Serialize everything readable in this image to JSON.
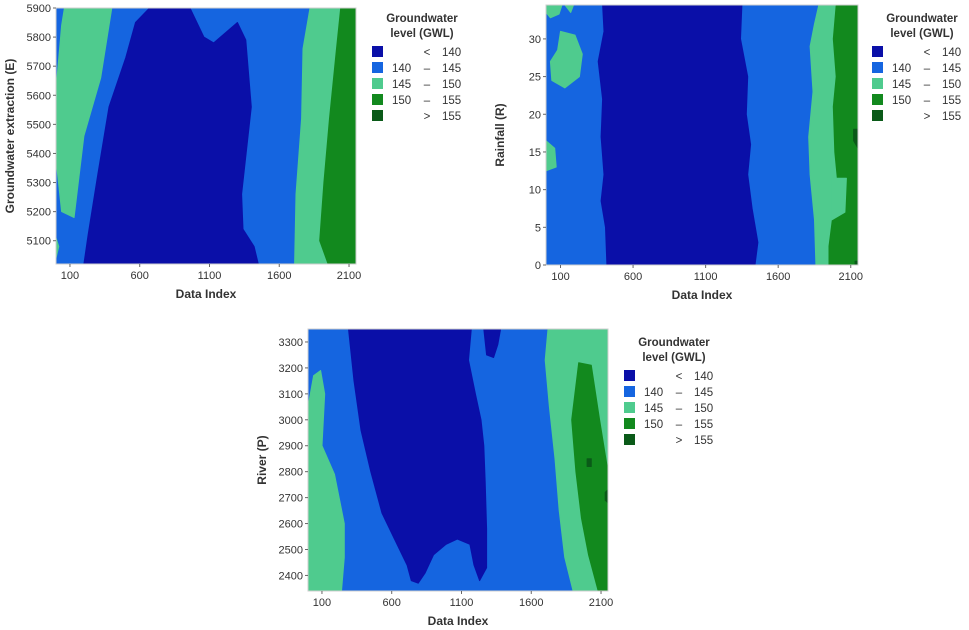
{
  "colors": {
    "lt140": "#0A0FA8",
    "b140_145": "#1565E0",
    "b145_150": "#4FCB8E",
    "b150_155": "#12891E",
    "gt155": "#0A5A18",
    "axis": "#333333"
  },
  "legend": {
    "title_line1": "Groundwater",
    "title_line2": "level (GWL)",
    "items": [
      {
        "left": "",
        "dash": "<",
        "right": "140",
        "color_key": "lt140"
      },
      {
        "left": "140",
        "dash": "–",
        "right": "145",
        "color_key": "b140_145"
      },
      {
        "left": "145",
        "dash": "–",
        "right": "150",
        "color_key": "b145_150"
      },
      {
        "left": "150",
        "dash": "–",
        "right": "155",
        "color_key": "b150_155"
      },
      {
        "left": "",
        "dash": ">",
        "right": "155",
        "color_key": "gt155"
      }
    ]
  },
  "chart_data": [
    {
      "type": "contour",
      "xlabel": "Data Index",
      "ylabel": "Groundwater extraction (E)",
      "xlim": [
        0,
        2150
      ],
      "ylim": [
        5020,
        5900
      ],
      "xticks": [
        100,
        600,
        1100,
        1600,
        2100
      ],
      "yticks": [
        5100,
        5200,
        5300,
        5400,
        5500,
        5600,
        5700,
        5800,
        5900
      ],
      "z_variable": "Groundwater level (GWL)",
      "regions": [
        {
          "level": "b145_150",
          "points": [
            [
              60,
              5900
            ],
            [
              400,
              5900
            ],
            [
              320,
              5660
            ],
            [
              200,
              5460
            ],
            [
              130,
              5180
            ],
            [
              40,
              5200
            ],
            [
              0,
              5380
            ],
            [
              0,
              5620
            ],
            [
              40,
              5840
            ]
          ]
        },
        {
          "level": "lt140",
          "points": [
            [
              670,
              5900
            ],
            [
              960,
              5900
            ],
            [
              1060,
              5800
            ],
            [
              1130,
              5780
            ],
            [
              1300,
              5850
            ],
            [
              1360,
              5790
            ],
            [
              1400,
              5560
            ],
            [
              1330,
              5260
            ],
            [
              1340,
              5140
            ],
            [
              1420,
              5080
            ],
            [
              1450,
              5020
            ],
            [
              200,
              5020
            ],
            [
              230,
              5120
            ],
            [
              300,
              5330
            ],
            [
              380,
              5560
            ],
            [
              500,
              5730
            ],
            [
              570,
              5850
            ]
          ]
        },
        {
          "level": "b145_150",
          "points": [
            [
              1820,
              5900
            ],
            [
              2000,
              5900
            ],
            [
              2150,
              5900
            ],
            [
              2150,
              5020
            ],
            [
              1710,
              5020
            ],
            [
              1720,
              5260
            ],
            [
              1760,
              5520
            ],
            [
              1770,
              5760
            ]
          ]
        },
        {
          "level": "b150_155",
          "points": [
            [
              2040,
              5900
            ],
            [
              2150,
              5900
            ],
            [
              2150,
              5020
            ],
            [
              1950,
              5020
            ],
            [
              1890,
              5100
            ],
            [
              1920,
              5300
            ],
            [
              1960,
              5520
            ],
            [
              2010,
              5760
            ]
          ]
        },
        {
          "level": "b145_150",
          "points": [
            [
              0,
              5040
            ],
            [
              20,
              5080
            ],
            [
              0,
              5110
            ]
          ]
        }
      ]
    },
    {
      "type": "contour",
      "xlabel": "Data Index",
      "ylabel": "Rainfall (R)",
      "xlim": [
        0,
        2150
      ],
      "ylim": [
        0,
        34.5
      ],
      "xticks": [
        100,
        600,
        1100,
        1600,
        2100
      ],
      "yticks": [
        0,
        5,
        10,
        15,
        20,
        25,
        30
      ],
      "z_variable": "Groundwater level (GWL)",
      "regions": [
        {
          "level": "b145_150",
          "points": [
            [
              0,
              34.5
            ],
            [
              110,
              34.5
            ],
            [
              90,
              33.3
            ],
            [
              30,
              32.8
            ],
            [
              0,
              33.5
            ]
          ]
        },
        {
          "level": "b145_150",
          "points": [
            [
              130,
              34.5
            ],
            [
              190,
              34.5
            ],
            [
              170,
              33.5
            ]
          ]
        },
        {
          "level": "b145_150",
          "points": [
            [
              100,
              31
            ],
            [
              200,
              30.5
            ],
            [
              250,
              28
            ],
            [
              230,
              25
            ],
            [
              130,
              23.5
            ],
            [
              40,
              24.5
            ],
            [
              30,
              27
            ],
            [
              80,
              28.5
            ]
          ]
        },
        {
          "level": "b145_150",
          "points": [
            [
              0,
              16.5
            ],
            [
              60,
              15.5
            ],
            [
              70,
              13
            ],
            [
              0,
              12.5
            ]
          ]
        },
        {
          "level": "lt140",
          "points": [
            [
              390,
              34.5
            ],
            [
              1350,
              34.5
            ],
            [
              1340,
              30
            ],
            [
              1390,
              25
            ],
            [
              1380,
              20
            ],
            [
              1410,
              16
            ],
            [
              1390,
              12
            ],
            [
              1420,
              7.5
            ],
            [
              1460,
              3
            ],
            [
              1440,
              0
            ],
            [
              420,
              0
            ],
            [
              410,
              5
            ],
            [
              380,
              8.5
            ],
            [
              400,
              12
            ],
            [
              380,
              17
            ],
            [
              390,
              22
            ],
            [
              360,
              27
            ],
            [
              400,
              31
            ]
          ]
        },
        {
          "level": "b145_150",
          "points": [
            [
              1880,
              34.5
            ],
            [
              2150,
              34.5
            ],
            [
              2150,
              0
            ],
            [
              1860,
              0
            ],
            [
              1850,
              6
            ],
            [
              1820,
              12
            ],
            [
              1810,
              17
            ],
            [
              1840,
              23
            ],
            [
              1820,
              29
            ],
            [
              1850,
              32
            ]
          ]
        },
        {
          "level": "b150_155",
          "points": [
            [
              2000,
              34.5
            ],
            [
              2150,
              34.5
            ],
            [
              2150,
              0
            ],
            [
              1950,
              0
            ],
            [
              1950,
              2.5
            ],
            [
              1980,
              7
            ],
            [
              2010,
              11
            ],
            [
              1990,
              15
            ],
            [
              1980,
              21
            ],
            [
              2000,
              25
            ],
            [
              1980,
              30
            ]
          ]
        },
        {
          "level": "b145_150",
          "points": [
            [
              1970,
              11.5
            ],
            [
              2070,
              11.5
            ],
            [
              2060,
              7
            ],
            [
              1970,
              6
            ]
          ]
        },
        {
          "level": "gt155",
          "points": [
            [
              2120,
              18
            ],
            [
              2150,
              18
            ],
            [
              2150,
              15.5
            ],
            [
              2120,
              16.5
            ]
          ]
        },
        {
          "level": "gt155",
          "points": [
            [
              2130,
              0.5
            ],
            [
              2150,
              0.5
            ],
            [
              2150,
              0
            ],
            [
              2130,
              0
            ]
          ]
        }
      ]
    },
    {
      "type": "contour",
      "xlabel": "Data Index",
      "ylabel": "River (P)",
      "xlim": [
        0,
        2150
      ],
      "ylim": [
        2340,
        3350
      ],
      "xticks": [
        100,
        600,
        1100,
        1600,
        2100
      ],
      "yticks": [
        2400,
        2500,
        2600,
        2700,
        2800,
        2900,
        3000,
        3100,
        3200,
        3300
      ],
      "z_variable": "Groundwater level (GWL)",
      "regions": [
        {
          "level": "b145_150",
          "points": [
            [
              40,
              3170
            ],
            [
              90,
              3190
            ],
            [
              120,
              3100
            ],
            [
              100,
              2900
            ],
            [
              190,
              2790
            ],
            [
              260,
              2600
            ],
            [
              260,
              2470
            ],
            [
              240,
              2340
            ],
            [
              210,
              2340
            ],
            [
              0,
              2340
            ],
            [
              0,
              3050
            ]
          ]
        },
        {
          "level": "lt140",
          "points": [
            [
              290,
              3350
            ],
            [
              1170,
              3350
            ],
            [
              1150,
              3230
            ],
            [
              1200,
              3100
            ],
            [
              1240,
              3000
            ],
            [
              1260,
              2900
            ],
            [
              1270,
              2760
            ],
            [
              1280,
              2580
            ],
            [
              1280,
              2430
            ],
            [
              1230,
              2380
            ],
            [
              1190,
              2440
            ],
            [
              1160,
              2520
            ],
            [
              1070,
              2540
            ],
            [
              990,
              2520
            ],
            [
              900,
              2480
            ],
            [
              840,
              2410
            ],
            [
              790,
              2370
            ],
            [
              740,
              2380
            ],
            [
              710,
              2440
            ],
            [
              620,
              2540
            ],
            [
              530,
              2640
            ],
            [
              450,
              2800
            ],
            [
              380,
              2960
            ],
            [
              330,
              3150
            ]
          ]
        },
        {
          "level": "lt140",
          "points": [
            [
              1260,
              3350
            ],
            [
              1380,
              3350
            ],
            [
              1360,
              3290
            ],
            [
              1330,
              3240
            ],
            [
              1280,
              3250
            ],
            [
              1270,
              3300
            ]
          ]
        },
        {
          "level": "b145_150",
          "points": [
            [
              1720,
              3350
            ],
            [
              2150,
              3350
            ],
            [
              2150,
              2340
            ],
            [
              1900,
              2340
            ],
            [
              1840,
              2470
            ],
            [
              1800,
              2650
            ],
            [
              1770,
              2850
            ],
            [
              1730,
              3050
            ],
            [
              1700,
              3230
            ]
          ]
        },
        {
          "level": "b150_155",
          "points": [
            [
              1940,
              3220
            ],
            [
              2030,
              3210
            ],
            [
              2090,
              3000
            ],
            [
              2150,
              2800
            ],
            [
              2150,
              2340
            ],
            [
              2080,
              2340
            ],
            [
              2010,
              2480
            ],
            [
              1960,
              2620
            ],
            [
              1920,
              2800
            ],
            [
              1890,
              3000
            ]
          ]
        },
        {
          "level": "gt155",
          "points": [
            [
              2000,
              2850
            ],
            [
              2030,
              2850
            ],
            [
              2030,
              2820
            ],
            [
              2000,
              2820
            ]
          ]
        },
        {
          "level": "gt155",
          "points": [
            [
              2130,
              2720
            ],
            [
              2150,
              2730
            ],
            [
              2150,
              2680
            ],
            [
              2130,
              2690
            ]
          ]
        }
      ]
    }
  ]
}
